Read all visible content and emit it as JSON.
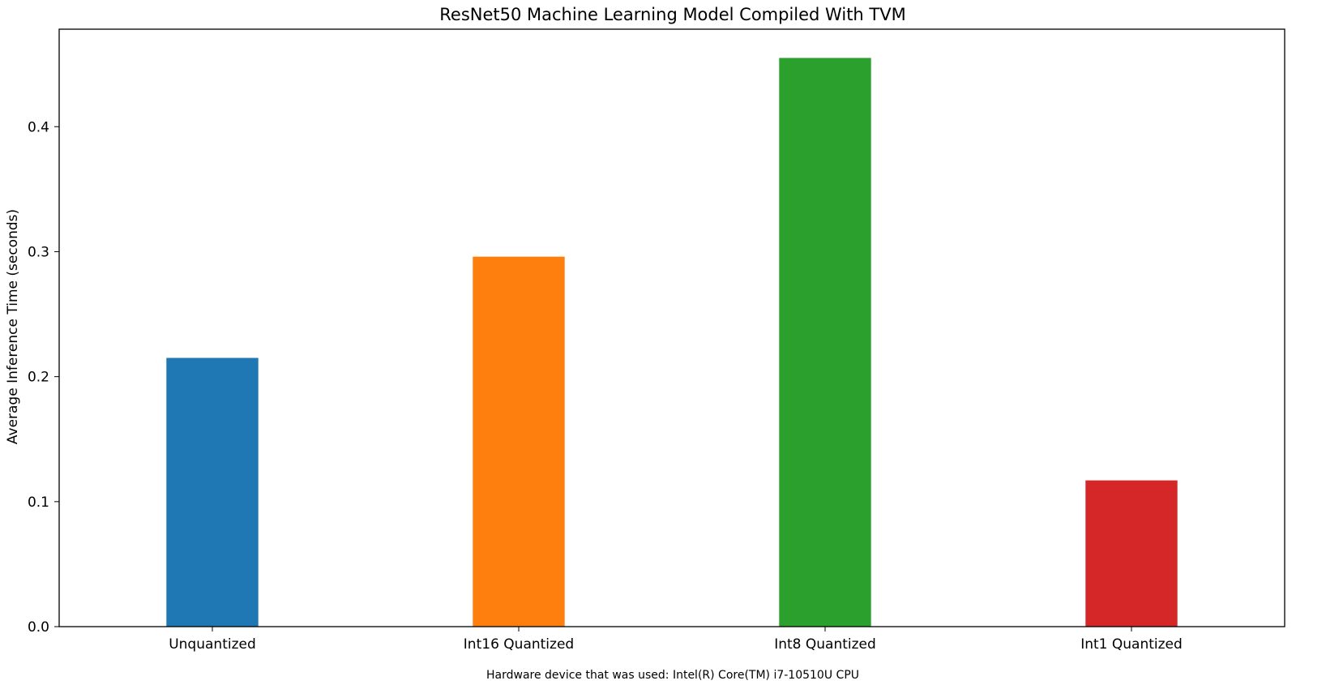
{
  "chart_data": {
    "type": "bar",
    "title": "ResNet50 Machine Learning Model Compiled With TVM",
    "xlabel": "",
    "ylabel": "Average Inference Time (seconds)",
    "footnote": "Hardware device that was used: Intel(R) Core(TM) i7-10510U CPU",
    "categories": [
      "Unquantized",
      "Int16 Quantized",
      "Int8 Quantized",
      "Int1 Quantized"
    ],
    "values": [
      0.215,
      0.296,
      0.455,
      0.117
    ],
    "colors": [
      "#1f77b4",
      "#ff7f0e",
      "#2ca02c",
      "#d62728"
    ],
    "ylim": [
      0,
      0.478
    ],
    "yticks": [
      0.0,
      0.1,
      0.2,
      0.3,
      0.4
    ],
    "ytick_labels": [
      "0.0",
      "0.1",
      "0.2",
      "0.3",
      "0.4"
    ],
    "grid": false,
    "legend": "none"
  }
}
